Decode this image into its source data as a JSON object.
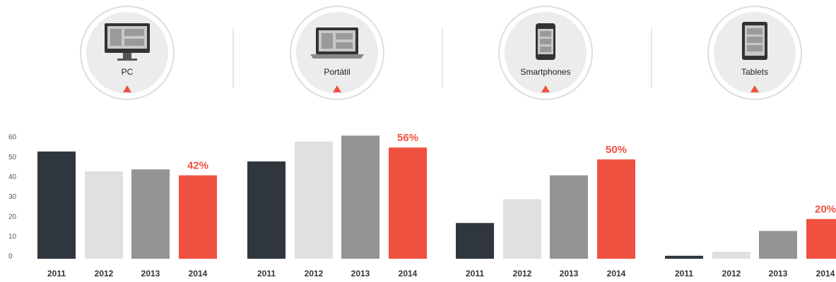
{
  "chart_data": [
    {
      "type": "bar",
      "title": "PC",
      "categories": [
        "2011",
        "2012",
        "2013",
        "2014"
      ],
      "values": [
        54,
        44,
        45,
        42
      ],
      "value_labels": [
        null,
        null,
        null,
        "42%"
      ],
      "colors": [
        "#30363d",
        "#e0e0e2",
        "#949497",
        "#f05040"
      ],
      "ylim": [
        0,
        65
      ],
      "yticks": [
        0,
        10,
        20,
        30,
        40,
        50,
        60
      ]
    },
    {
      "type": "bar",
      "title": "Portátil",
      "categories": [
        "2011",
        "2012",
        "2013",
        "2014"
      ],
      "values": [
        49,
        59,
        62,
        56
      ],
      "value_labels": [
        null,
        null,
        null,
        "56%"
      ],
      "colors": [
        "#30363d",
        "#e0e0e2",
        "#949497",
        "#f05040"
      ],
      "ylim": [
        0,
        65
      ]
    },
    {
      "type": "bar",
      "title": "Smartphones",
      "categories": [
        "2011",
        "2012",
        "2013",
        "2014"
      ],
      "values": [
        18,
        30,
        42,
        50
      ],
      "value_labels": [
        null,
        null,
        null,
        "50%"
      ],
      "colors": [
        "#30363d",
        "#e0e0e2",
        "#949497",
        "#f05040"
      ],
      "ylim": [
        0,
        65
      ]
    },
    {
      "type": "bar",
      "title": "Tablets",
      "categories": [
        "2011",
        "2012",
        "2013",
        "2014"
      ],
      "values": [
        1.5,
        3.5,
        14,
        20
      ],
      "value_labels": [
        null,
        null,
        null,
        "20%"
      ],
      "colors": [
        "#30363d",
        "#e0e0e2",
        "#949497",
        "#f05040"
      ],
      "ylim": [
        0,
        65
      ]
    }
  ]
}
